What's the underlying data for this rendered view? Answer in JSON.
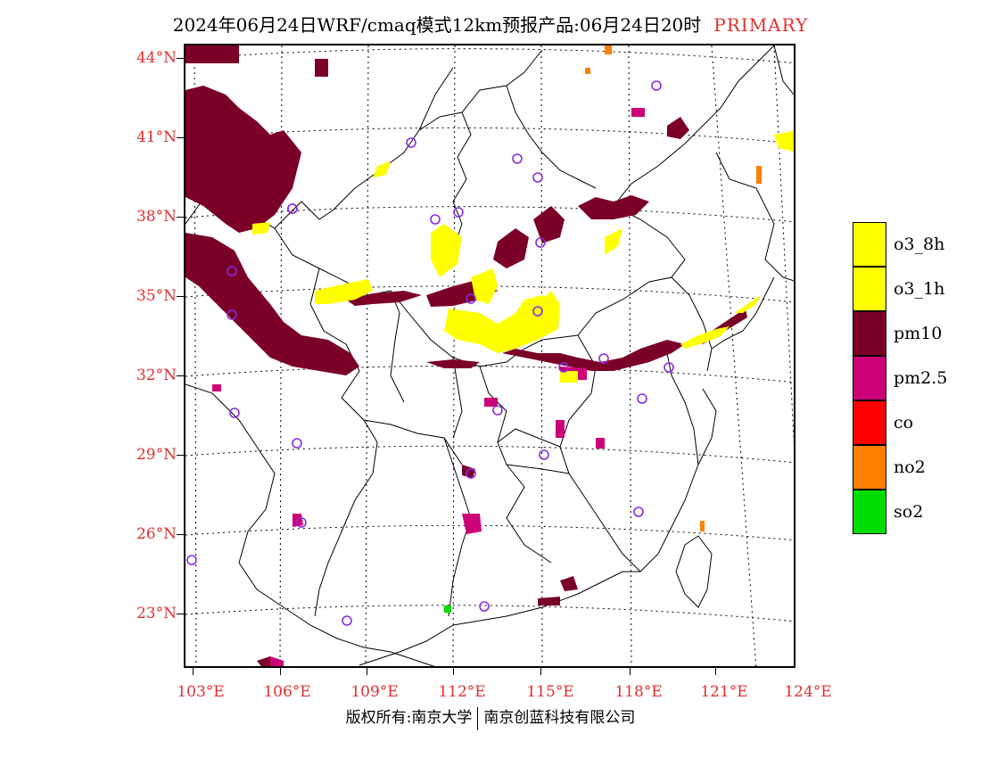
{
  "title": {
    "main": "2024年06月24日WRF/cmaq模式12km预报产品:06月24日20时",
    "tag": "PRIMARY"
  },
  "axes": {
    "lat_labels": [
      "44°N",
      "41°N",
      "38°N",
      "35°N",
      "32°N",
      "29°N",
      "26°N",
      "23°N"
    ],
    "lon_labels": [
      "103°E",
      "106°E",
      "109°E",
      "112°E",
      "115°E",
      "118°E",
      "121°E",
      "124°E"
    ]
  },
  "legend": {
    "items": [
      {
        "label": "o3_8h",
        "color": "#ffff00"
      },
      {
        "label": "o3_1h",
        "color": "#ffff00"
      },
      {
        "label": "pm10",
        "color": "#7b0028"
      },
      {
        "label": "pm2.5",
        "color": "#cc0077"
      },
      {
        "label": "co",
        "color": "#ff0000"
      },
      {
        "label": "no2",
        "color": "#ff7f00"
      },
      {
        "label": "so2",
        "color": "#00dd00"
      }
    ]
  },
  "footer": {
    "left": "版权所有:南京大学",
    "right": "南京创蓝科技有限公司"
  },
  "colors": {
    "axis_label": "#e03030",
    "station_marker": "#8a2be2"
  }
}
